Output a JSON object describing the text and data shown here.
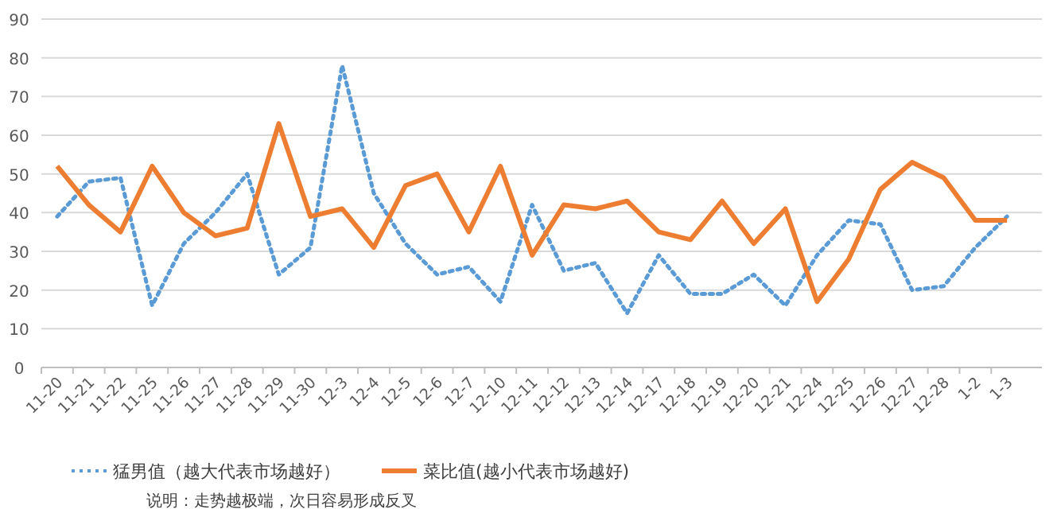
{
  "chart_data": {
    "type": "line",
    "categories": [
      "11-20",
      "11-21",
      "11-22",
      "11-25",
      "11-26",
      "11-27",
      "11-28",
      "11-29",
      "11-30",
      "12-3",
      "12-4",
      "12-5",
      "12-6",
      "12-7",
      "12-10",
      "12-11",
      "12-12",
      "12-13",
      "12-14",
      "12-17",
      "12-18",
      "12-19",
      "12-20",
      "12-21",
      "12-24",
      "12-25",
      "12-26",
      "12-27",
      "12-28",
      "1-2",
      "1-3"
    ],
    "series": [
      {
        "name": "猛男值（越大代表市场越好）",
        "color": "#5b9bd5",
        "line_style": "dotted",
        "values": [
          39,
          48,
          49,
          16,
          32,
          40,
          50,
          24,
          31,
          78,
          45,
          32,
          24,
          26,
          17,
          42,
          25,
          27,
          14,
          29,
          19,
          19,
          24,
          16,
          29,
          38,
          37,
          20,
          21,
          31,
          39
        ]
      },
      {
        "name": "菜比值(越小代表市场越好)",
        "color": "#ed7d31",
        "line_style": "solid",
        "values": [
          52,
          42,
          35,
          52,
          40,
          34,
          36,
          63,
          39,
          41,
          31,
          47,
          50,
          35,
          52,
          29,
          42,
          41,
          43,
          35,
          33,
          43,
          32,
          41,
          17,
          28,
          46,
          53,
          49,
          38,
          38
        ]
      }
    ],
    "ylim": [
      0,
      90
    ],
    "yticks": [
      0,
      10,
      20,
      30,
      40,
      50,
      60,
      70,
      80,
      90
    ],
    "grid": "y",
    "legend": "bottom",
    "annotations": [
      "说明：走势越极端，次日容易形成反叉"
    ]
  }
}
